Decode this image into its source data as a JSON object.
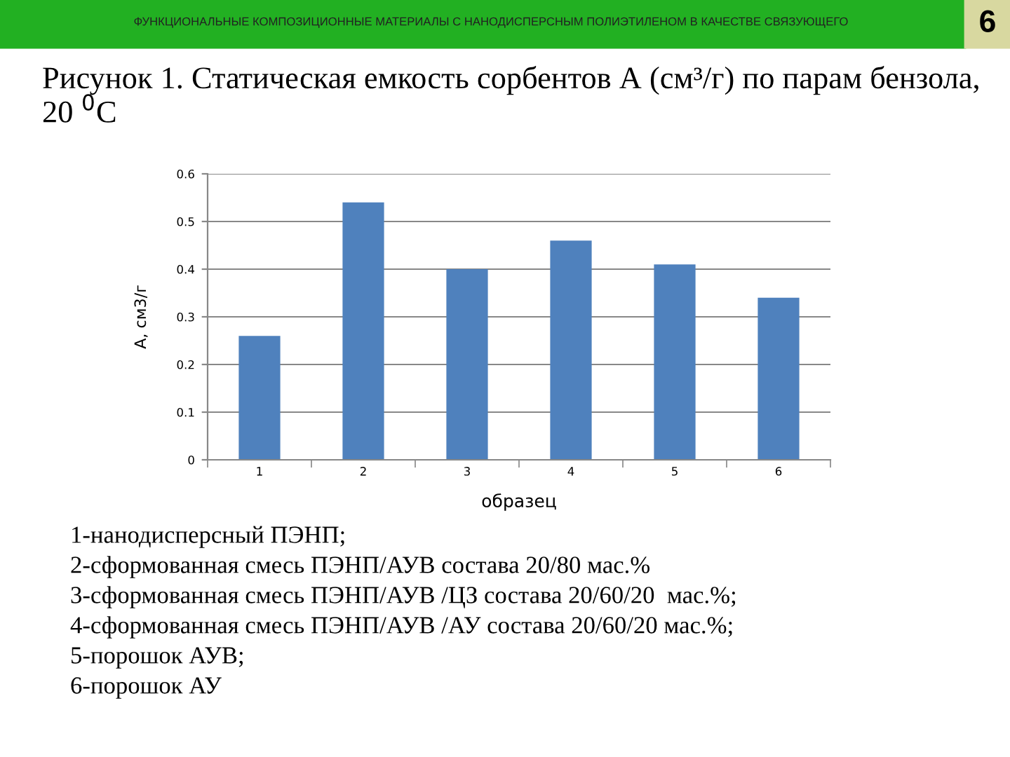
{
  "chart_data": {
    "type": "bar",
    "title": "Рисунок 1. Статическая емкость сорбентов А (см³/г) по парам бензола, 20 $^{0}$С",
    "xlabel": "образец",
    "ylabel": "А, см3/г",
    "categories": [
      "1",
      "2",
      "3",
      "4",
      "5",
      "6"
    ],
    "values": [
      0.26,
      0.54,
      0.4,
      0.46,
      0.41,
      0.34
    ],
    "color": "#4f81bd",
    "ylim": [
      0,
      0.6
    ],
    "yticks": [
      {
        "value": 0,
        "label": "0"
      },
      0.1,
      0.2,
      0.3,
      0.4,
      0.5,
      0.6
    ],
    "grid": "y",
    "legend": false,
    "annotations": [
      "ФУНКЦИОНАЛЬНЫЕ КОМПОЗИЦИОННЫЕ МАТЕРИАЛЫ С НАНОДИСПЕРСНЫМ ПОЛИЭТИЛЕНОМ В КАЧЕСТВЕ СВЯЗУЮЩЕГО",
      "6",
      "1-нанодисперсный ПЭНП;",
      "2-сформованная смесь ПЭНП/АУВ состава 20/80 мас.%",
      "3-сформованная смесь ПЭНП/АУВ /ЦЗ состава 20/60/20  мас.%;",
      "4-сформованная смесь ПЭНП/АУВ /АУ состава 20/60/20 мас.%;",
      "5-порошок АУВ;",
      "6-порошок АУ"
    ]
  }
}
